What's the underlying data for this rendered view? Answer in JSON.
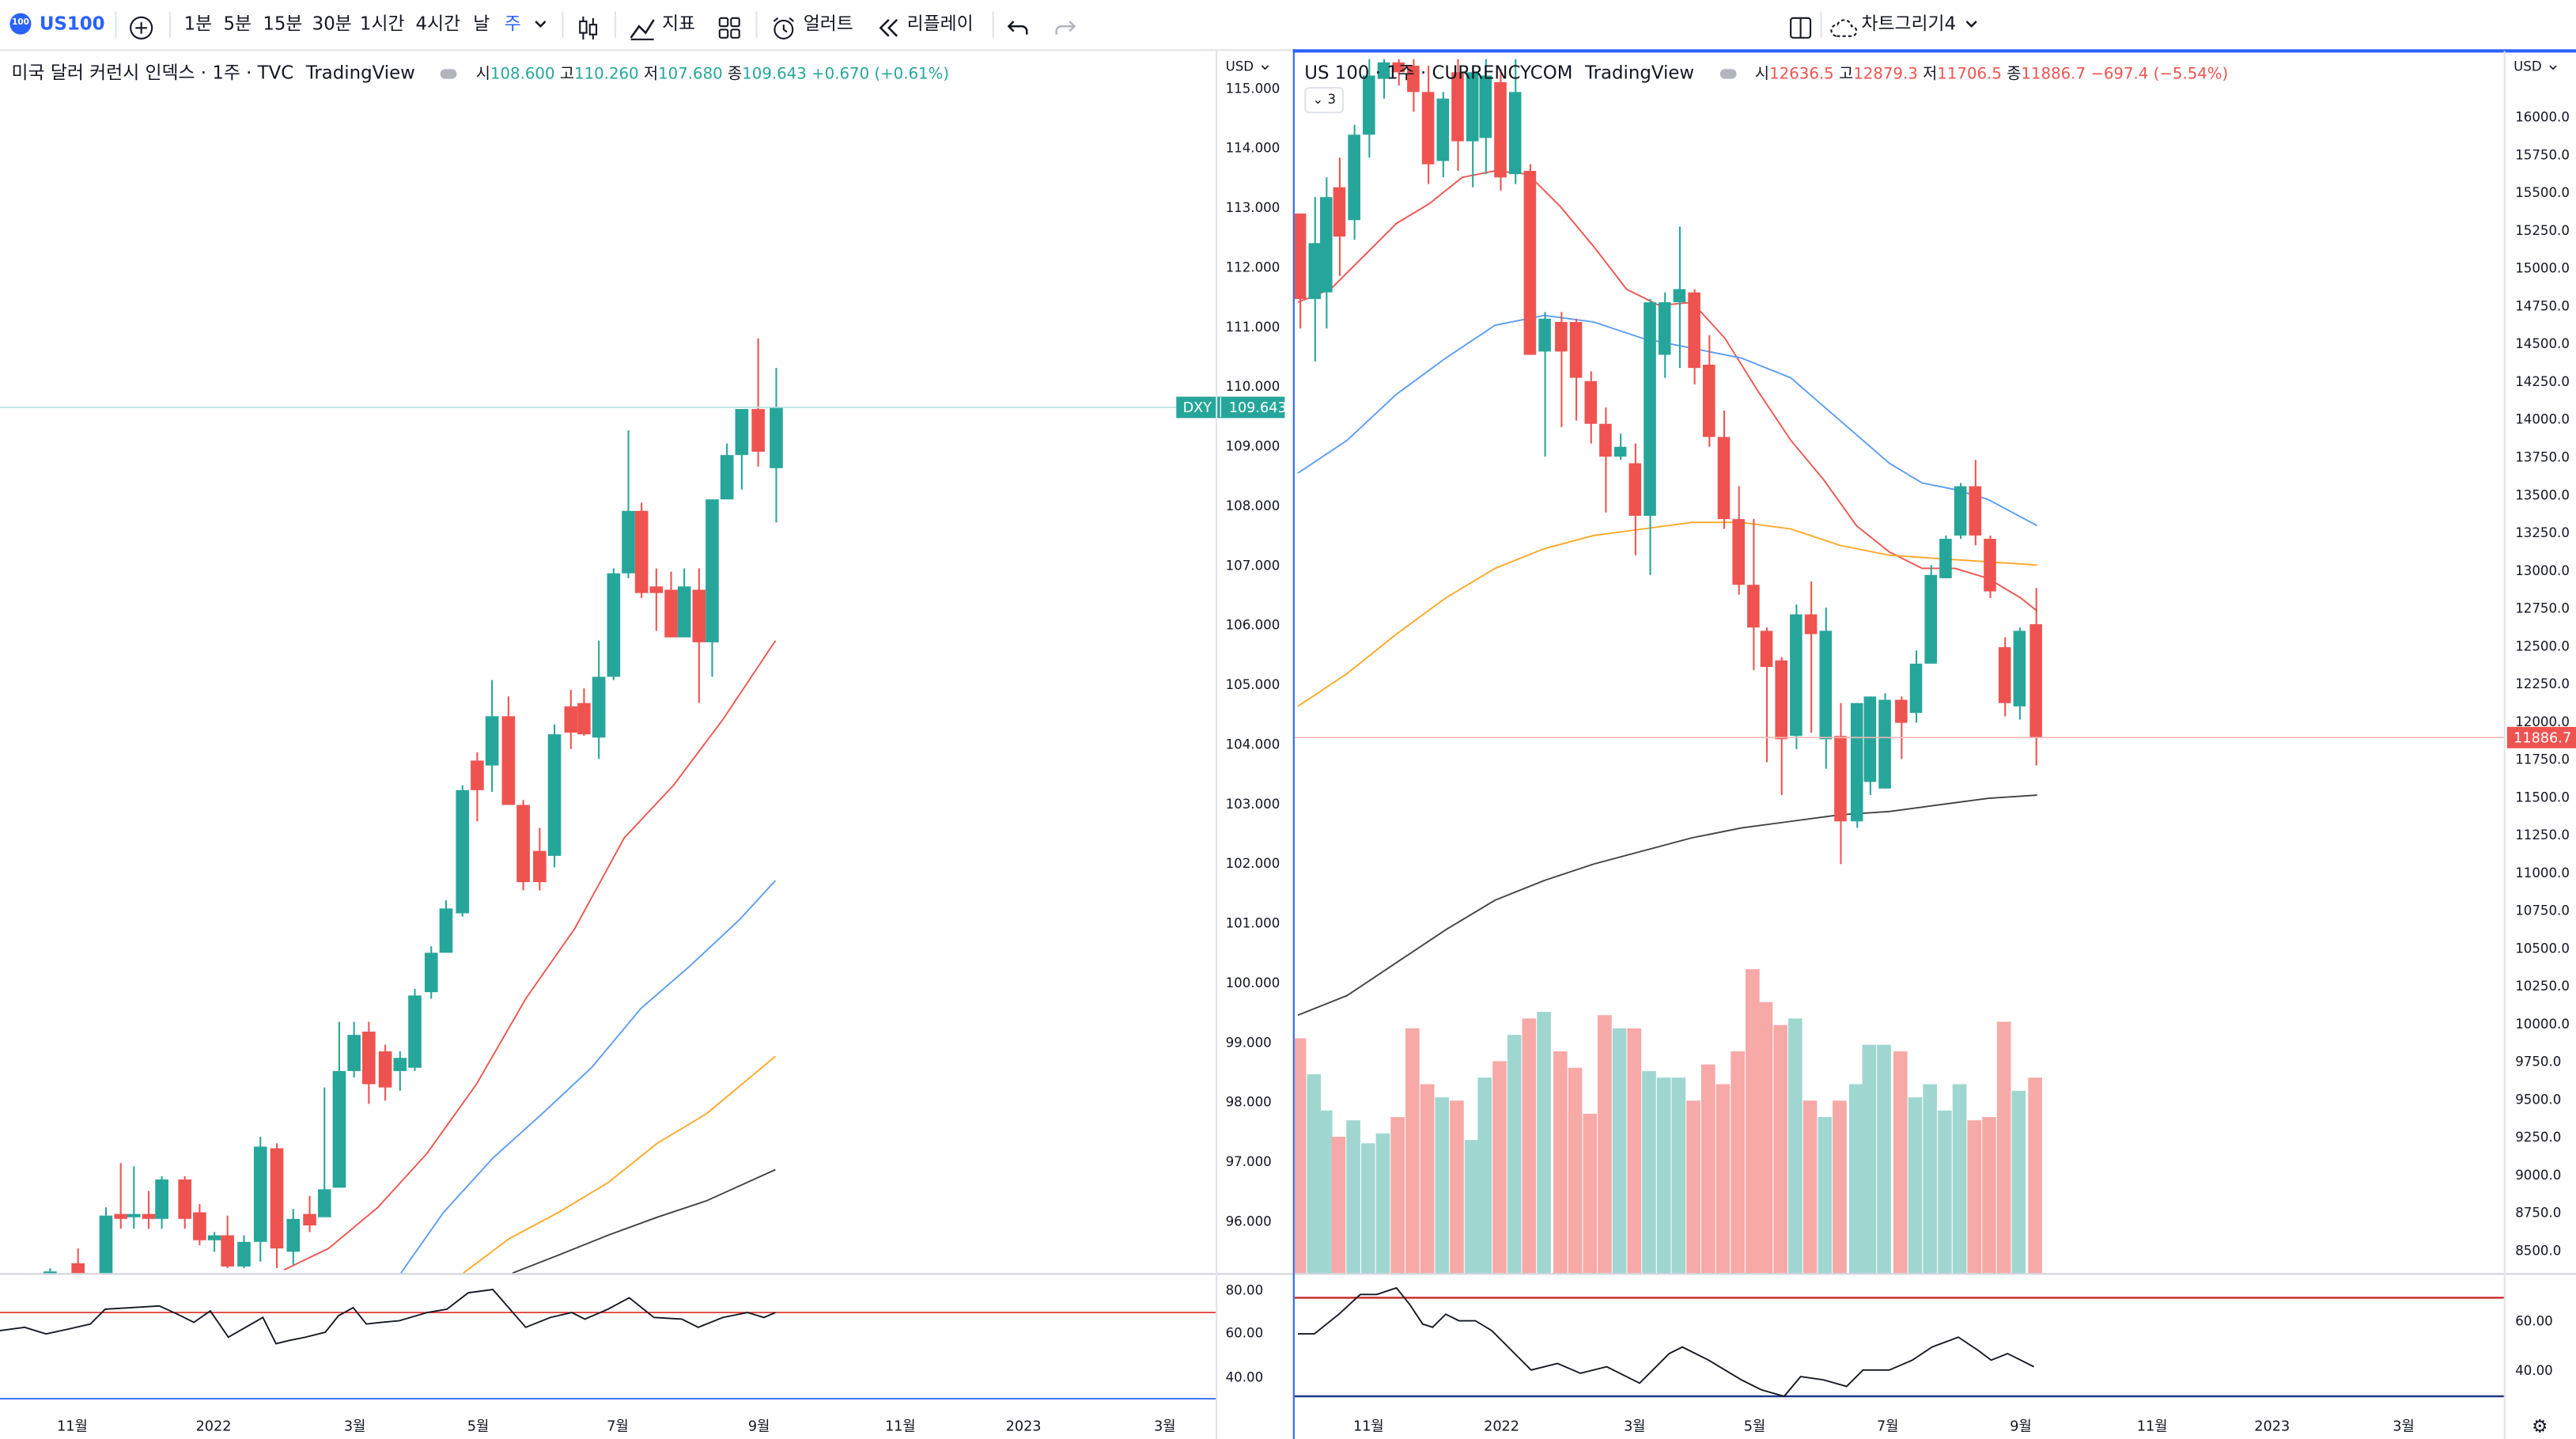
{
  "toolbar": {
    "symbol": "US100",
    "intervals": [
      "1분",
      "5분",
      "15분",
      "30분",
      "1시간",
      "4시간",
      "날",
      "주"
    ],
    "active_interval": "주",
    "indicators_label": "지표",
    "alert_label": "얼러트",
    "replay_label": "리플레이",
    "layout_name": "차트그리기4"
  },
  "left_chart": {
    "title": "미국 달러 커런시 인덱스 · 1주 · TVC",
    "source": "TradingView",
    "open_label": "시",
    "open": "108.600",
    "high_label": "고",
    "high": "110.260",
    "low_label": "저",
    "low": "107.680",
    "close_label": "종",
    "close": "109.643",
    "change": "+0.670 (+0.61%)",
    "price_currency": "USD",
    "price_ticks": [
      "115.000",
      "114.000",
      "113.000",
      "112.000",
      "111.000",
      "110.000",
      "109.000",
      "108.000",
      "107.000",
      "106.000",
      "105.000",
      "104.000",
      "103.000",
      "102.000",
      "101.000",
      "100.000",
      "99.000",
      "98.000",
      "97.000",
      "96.000"
    ],
    "tag_symbol": "DXY",
    "tag_price": "109.643",
    "rsi_ticks": [
      "80.00",
      "60.00",
      "40.00"
    ],
    "time_labels": [
      "11월",
      "2022",
      "3월",
      "5월",
      "7월",
      "9월",
      "11월",
      "2023",
      "3월"
    ]
  },
  "right_chart": {
    "title": "US 100 · 1주 · CURRENCYCOM",
    "source": "TradingView",
    "open_label": "시",
    "open": "12636.5",
    "high_label": "고",
    "high": "12879.3",
    "low_label": "저",
    "low": "11706.5",
    "close_label": "종",
    "close": "11886.7",
    "change": "−697.4 (−5.54%)",
    "collapsed_count": "3",
    "price_currency": "USD",
    "price_ticks": [
      "16000.0",
      "15750.0",
      "15500.0",
      "15250.0",
      "15000.0",
      "14750.0",
      "14500.0",
      "14250.0",
      "14000.0",
      "13750.0",
      "13500.0",
      "13250.0",
      "13000.0",
      "12750.0",
      "12500.0",
      "12250.0",
      "12000.0",
      "11750.0",
      "11500.0",
      "11250.0",
      "11000.0",
      "10750.0",
      "10500.0",
      "10250.0",
      "10000.0",
      "9750.0",
      "9500.0",
      "9250.0",
      "9000.0",
      "8750.0",
      "8500.0"
    ],
    "tag_price": "11886.7",
    "rsi_ticks": [
      "60.00",
      "40.00"
    ],
    "time_labels": [
      "11월",
      "2022",
      "3월",
      "5월",
      "7월",
      "9월",
      "11월",
      "2023",
      "3월"
    ]
  },
  "colors": {
    "up": "#26a69a",
    "down": "#ef5350",
    "ma_red": "#ef5350",
    "ma_blue": "#5b9cf6",
    "ma_orange": "#ffa726",
    "ma_black": "#424242",
    "rsi_line": "#131722",
    "rsi_level": "#e53935",
    "active_blue": "#2962ff"
  }
}
